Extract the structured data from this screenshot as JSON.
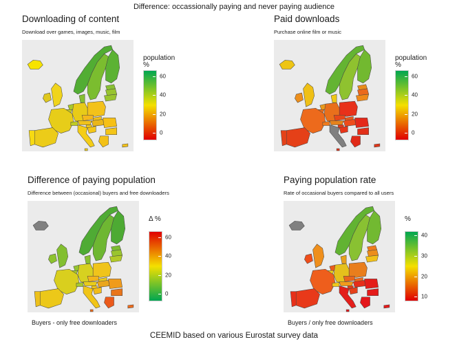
{
  "title": "Difference: occassionally paying and never paying audience",
  "caption": "CEEMID based on various Eurostat survey data",
  "colors": {
    "map_bg": "#ebebeb",
    "missing": "#808080",
    "border": "#444444"
  },
  "panels": [
    {
      "title": "Downloading of content",
      "subtitle": "Download over games, images, music, film",
      "legend_title": "population\n%",
      "legend_ticks": [
        "60",
        "40",
        "20",
        "0"
      ],
      "gradient": [
        "#00a651",
        "#f4e000",
        "#e00000"
      ],
      "caption": ""
    },
    {
      "title": "Paid downloads",
      "subtitle": "Purchase online film or music",
      "legend_title": "population\n%",
      "legend_ticks": [
        "60",
        "40",
        "20",
        "0"
      ],
      "gradient": [
        "#00a651",
        "#f4e000",
        "#e00000"
      ],
      "caption": ""
    },
    {
      "title": "Difference of paying population",
      "subtitle": "Difference between (occasional) buyers and free downloaders",
      "legend_title": "Δ %",
      "legend_ticks": [
        "60",
        "40",
        "20",
        "0"
      ],
      "gradient": [
        "#e00000",
        "#f4e000",
        "#00a651"
      ],
      "caption": "Buyers - only free downloaders"
    },
    {
      "title": "Paying population rate",
      "subtitle": "Rate of occasional buyers compared to all users",
      "legend_title": "%",
      "legend_ticks": [
        "40",
        "30",
        "20",
        "10"
      ],
      "gradient": [
        "#00a651",
        "#f4e000",
        "#e00000"
      ],
      "caption": "Buyers / only free downloaders"
    }
  ]
}
